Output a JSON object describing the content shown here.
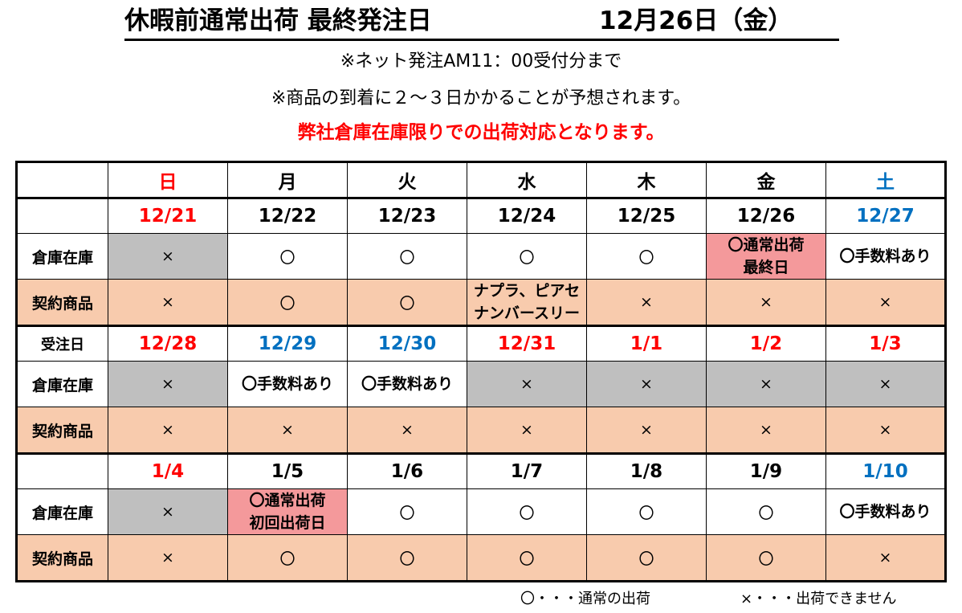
{
  "title": "休暇前通常出荷 最終発注日",
  "title_date": "12月26日（金）",
  "subtitle1": "※ネット発注AM11：00受付分まで",
  "subtitle2": "※商品の到着に２～３日かかることが予想されます。",
  "notice": "弊社倉庫在庫限りでの出荷対応となります。",
  "row_labels": {
    "stock": "倉庫在庫",
    "contract": "契約商品",
    "order_day": "受注日"
  },
  "weekdays": [
    "日",
    "月",
    "火",
    "水",
    "木",
    "金",
    "土"
  ],
  "weeks": [
    {
      "dates": [
        "12/21",
        "12/22",
        "12/23",
        "12/24",
        "12/25",
        "12/26",
        "12/27"
      ],
      "stock": [
        "×",
        "〇",
        "〇",
        "〇",
        "〇",
        "〇通常出荷\n最終日",
        "〇手数料あり"
      ],
      "contract": [
        "×",
        "〇",
        "〇",
        "ナプラ、ピアセ\nナンバースリー",
        "×",
        "×",
        "×"
      ]
    },
    {
      "dates": [
        "12/28",
        "12/29",
        "12/30",
        "12/31",
        "1/1",
        "1/2",
        "1/3"
      ],
      "stock": [
        "×",
        "〇手数料あり",
        "〇手数料あり",
        "×",
        "×",
        "×",
        "×"
      ],
      "contract": [
        "×",
        "×",
        "×",
        "×",
        "×",
        "×",
        "×"
      ]
    },
    {
      "dates": [
        "1/4",
        "1/5",
        "1/6",
        "1/7",
        "1/8",
        "1/9",
        "1/10"
      ],
      "stock": [
        "×",
        "〇通常出荷\n初回出荷日",
        "〇",
        "〇",
        "〇",
        "〇",
        "〇手数料あり"
      ],
      "contract": [
        "×",
        "〇",
        "〇",
        "〇",
        "〇",
        "〇",
        "×"
      ]
    }
  ],
  "legend": {
    "circle": "〇・・・通常の出荷",
    "cross": "×・・・出荷できません"
  },
  "colors": {
    "holiday_red": "#ff0000",
    "blue": "#0070c0",
    "closed_gray": "#bfbfbf",
    "highlight_pink": "#f4999b",
    "contract_peach": "#f8cbad"
  }
}
